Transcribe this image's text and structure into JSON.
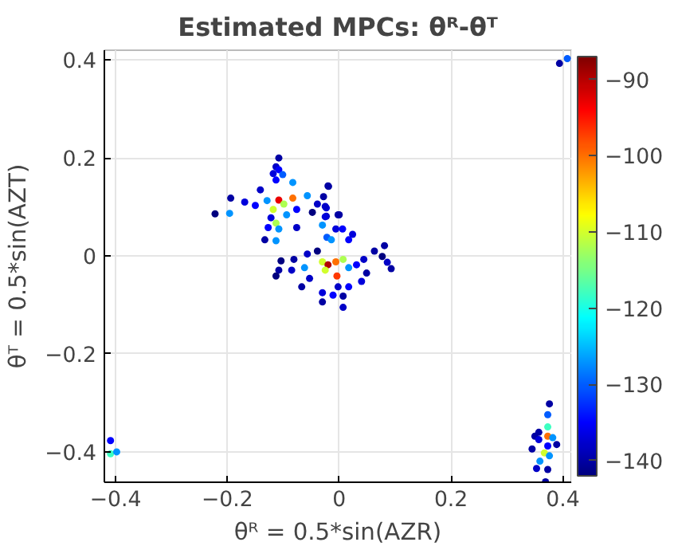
{
  "chart_data": {
    "type": "scatter",
    "title": "Estimated MPCs: θᴿ-θᵀ",
    "xlabel": "θᴿ = 0.5*sin(AZR)",
    "ylabel": "θᵀ = 0.5*sin(AZT)",
    "xlim": [
      -0.42,
      0.415
    ],
    "ylim": [
      -0.462,
      0.42
    ],
    "xticks": [
      -0.4,
      -0.2,
      0,
      0.2,
      0.4
    ],
    "yticks": [
      -0.4,
      -0.2,
      0,
      0.2,
      0.4
    ],
    "grid": true,
    "marker": "circle",
    "clim": [
      -142,
      -87
    ],
    "cticks": [
      -140,
      -130,
      -120,
      -110,
      -100,
      -90
    ],
    "series": [
      {
        "x": [
          -0.108,
          -0.113,
          -0.108,
          -0.118,
          -0.101,
          -0.113,
          -0.083,
          -0.141,
          -0.194,
          -0.222,
          -0.196,
          -0.169,
          -0.15,
          -0.108,
          -0.118,
          -0.099,
          -0.083,
          -0.129,
          -0.094,
          -0.076,
          -0.057,
          -0.048,
          -0.039,
          -0.028,
          -0.019,
          -0.023,
          -0.023,
          0.0,
          -0.122,
          -0.113,
          -0.127,
          -0.108,
          -0.076,
          -0.133,
          -0.113,
          -0.02,
          -0.025,
          -0.025,
          -0.002,
          -0.03,
          -0.006,
          0.006,
          -0.022,
          -0.014,
          0.017,
          0.024,
          -0.039,
          -0.057,
          -0.081,
          -0.104,
          -0.108,
          -0.085,
          -0.062,
          -0.03,
          -0.02,
          -0.006,
          0.007,
          -0.004,
          -0.025,
          0.017,
          0.031,
          0.044,
          0.049,
          0.063,
          0.077,
          0.081,
          0.093,
          0.086,
          0.04,
          0.017,
          -0.002,
          0.007,
          -0.011,
          -0.03,
          -0.03,
          0.007,
          -0.067,
          -0.053,
          -0.113,
          0.376,
          0.373,
          0.373,
          0.357,
          0.35,
          0.373,
          0.382,
          0.357,
          0.389,
          0.345,
          0.373,
          0.367,
          0.376,
          0.359,
          0.353,
          0.373,
          0.369,
          -0.409,
          -0.409,
          -0.398,
          0.394,
          0.408
        ],
        "values": [
          0.2,
          0.182,
          0.176,
          0.168,
          0.166,
          0.155,
          0.15,
          0.135,
          0.118,
          0.086,
          0.087,
          0.11,
          0.103,
          0.114,
          0.095,
          0.106,
          0.118,
          0.113,
          0.084,
          0.095,
          0.123,
          0.089,
          0.106,
          0.121,
          0.142,
          0.098,
          0.081,
          0.084,
          0.078,
          0.067,
          0.058,
          0.055,
          0.058,
          0.033,
          0.031,
          0.143,
          0.101,
          0.08,
          0.084,
          0.063,
          0.055,
          0.055,
          0.038,
          0.033,
          0.033,
          0.044,
          0.01,
          0.004,
          -0.007,
          -0.01,
          -0.029,
          -0.029,
          -0.024,
          -0.012,
          -0.018,
          -0.012,
          -0.007,
          -0.041,
          -0.029,
          -0.024,
          -0.018,
          -0.007,
          -0.035,
          0.01,
          -0.001,
          0.021,
          -0.026,
          -0.013,
          -0.052,
          -0.063,
          -0.063,
          -0.082,
          -0.08,
          -0.075,
          -0.094,
          -0.105,
          -0.063,
          -0.046,
          -0.041,
          -0.302,
          -0.324,
          -0.349,
          -0.36,
          -0.368,
          -0.368,
          -0.371,
          -0.375,
          -0.385,
          -0.394,
          -0.388,
          -0.402,
          -0.408,
          -0.419,
          -0.434,
          -0.436,
          -0.461,
          -0.377,
          -0.404,
          -0.4,
          0.393,
          0.403
        ],
        "cvalues": [
          -140,
          -138,
          -135,
          -137,
          -130,
          -135,
          -127,
          -138,
          -140,
          -142,
          -127,
          -137,
          -135,
          -93,
          -110,
          -112,
          -100,
          -127,
          -127,
          -135,
          -127,
          -142,
          -138,
          -140,
          -140,
          -137,
          -138,
          -140,
          -137,
          -112,
          -135,
          -127,
          -138,
          -140,
          -127,
          -140,
          -138,
          -137,
          -140,
          -127,
          -137,
          -135,
          -130,
          -127,
          -135,
          -137,
          -142,
          -138,
          -140,
          -142,
          -140,
          -138,
          -127,
          -110,
          -90,
          -100,
          -112,
          -97,
          -110,
          -127,
          -135,
          -138,
          -140,
          -140,
          -142,
          -140,
          -140,
          -138,
          -137,
          -135,
          -138,
          -140,
          -135,
          -137,
          -140,
          -138,
          -140,
          -138,
          -142,
          -140,
          -130,
          -118,
          -140,
          -140,
          -100,
          -127,
          -137,
          -140,
          -140,
          -135,
          -110,
          -127,
          -127,
          -138,
          -140,
          -140,
          -135,
          -118,
          -127,
          -140,
          -130
        ]
      }
    ]
  }
}
